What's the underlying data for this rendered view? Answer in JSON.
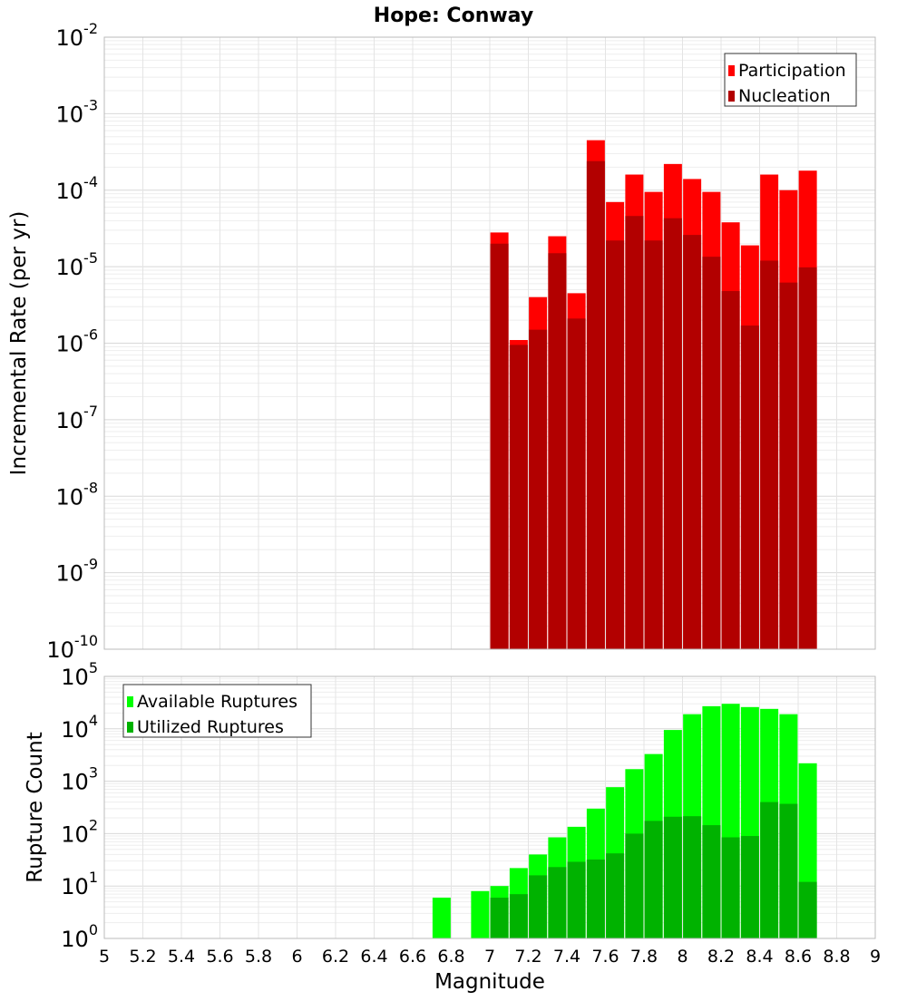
{
  "title": "Hope: Conway",
  "chart_data": [
    {
      "type": "bar",
      "ylabel": "Incremental Rate (per yr)",
      "yscale": "log",
      "ylim": [
        1e-10,
        0.01
      ],
      "xlim": [
        5,
        9
      ],
      "grid": true,
      "legend_position": "top-right",
      "y_tick_exponents": [
        "-10",
        "-9",
        "-8",
        "-7",
        "-6",
        "-5",
        "-4",
        "-3",
        "-2"
      ],
      "colors": {
        "participation": "#ff0000",
        "nucleation": "#b20000"
      },
      "series": [
        {
          "name": "Participation",
          "x": [
            7.05,
            7.15,
            7.25,
            7.35,
            7.45,
            7.55,
            7.65,
            7.75,
            7.85,
            7.95,
            8.05,
            8.15,
            8.25,
            8.35,
            8.45,
            8.55,
            8.65
          ],
          "values": [
            2.8e-05,
            1.1e-06,
            4e-06,
            2.5e-05,
            4.5e-06,
            0.00045,
            7e-05,
            0.00016,
            9.5e-05,
            0.00022,
            0.00014,
            9.5e-05,
            3.8e-05,
            1.9e-05,
            0.00016,
            0.0001,
            0.00018
          ]
        },
        {
          "name": "Nucleation",
          "x": [
            7.05,
            7.15,
            7.25,
            7.35,
            7.45,
            7.55,
            7.65,
            7.75,
            7.85,
            7.95,
            8.05,
            8.15,
            8.25,
            8.35,
            8.45,
            8.55,
            8.65
          ],
          "values": [
            2e-05,
            9.5e-07,
            1.5e-06,
            1.5e-05,
            2.1e-06,
            0.00024,
            2.2e-05,
            4.6e-05,
            2.2e-05,
            4.3e-05,
            2.6e-05,
            1.35e-05,
            4.8e-06,
            1.7e-06,
            1.2e-05,
            6.2e-06,
            9.8e-06
          ]
        }
      ]
    },
    {
      "type": "bar",
      "ylabel": "Rupture Count",
      "xlabel": "Magnitude",
      "yscale": "log",
      "ylim": [
        1,
        100000.0
      ],
      "xlim": [
        5,
        9
      ],
      "grid": true,
      "legend_position": "top-left",
      "x_ticks": [
        "5",
        "5.2",
        "5.4",
        "5.6",
        "5.8",
        "6",
        "6.2",
        "6.4",
        "6.6",
        "6.8",
        "7",
        "7.2",
        "7.4",
        "7.6",
        "7.8",
        "8",
        "8.2",
        "8.4",
        "8.6",
        "8.8",
        "9"
      ],
      "y_tick_exponents": [
        "0",
        "1",
        "2",
        "3",
        "4",
        "5"
      ],
      "colors": {
        "available": "#00ff00",
        "utilized": "#00b200"
      },
      "series": [
        {
          "name": "Available Ruptures",
          "x": [
            6.75,
            6.95,
            7.05,
            7.15,
            7.25,
            7.35,
            7.45,
            7.55,
            7.65,
            7.75,
            7.85,
            7.95,
            8.05,
            8.15,
            8.25,
            8.35,
            8.45,
            8.55,
            8.65
          ],
          "values": [
            6,
            8,
            10,
            22,
            40,
            85,
            135,
            300,
            770,
            1700,
            3300,
            9500,
            19000,
            27000,
            30000,
            26000,
            24000,
            19000,
            2200
          ]
        },
        {
          "name": "Utilized Ruptures",
          "x": [
            7.05,
            7.15,
            7.25,
            7.35,
            7.45,
            7.55,
            7.65,
            7.75,
            7.85,
            7.95,
            8.05,
            8.15,
            8.25,
            8.35,
            8.45,
            8.55,
            8.65
          ],
          "values": [
            6,
            7,
            16,
            23,
            29,
            32,
            42,
            100,
            175,
            210,
            215,
            145,
            85,
            90,
            400,
            370,
            12
          ]
        }
      ]
    }
  ]
}
